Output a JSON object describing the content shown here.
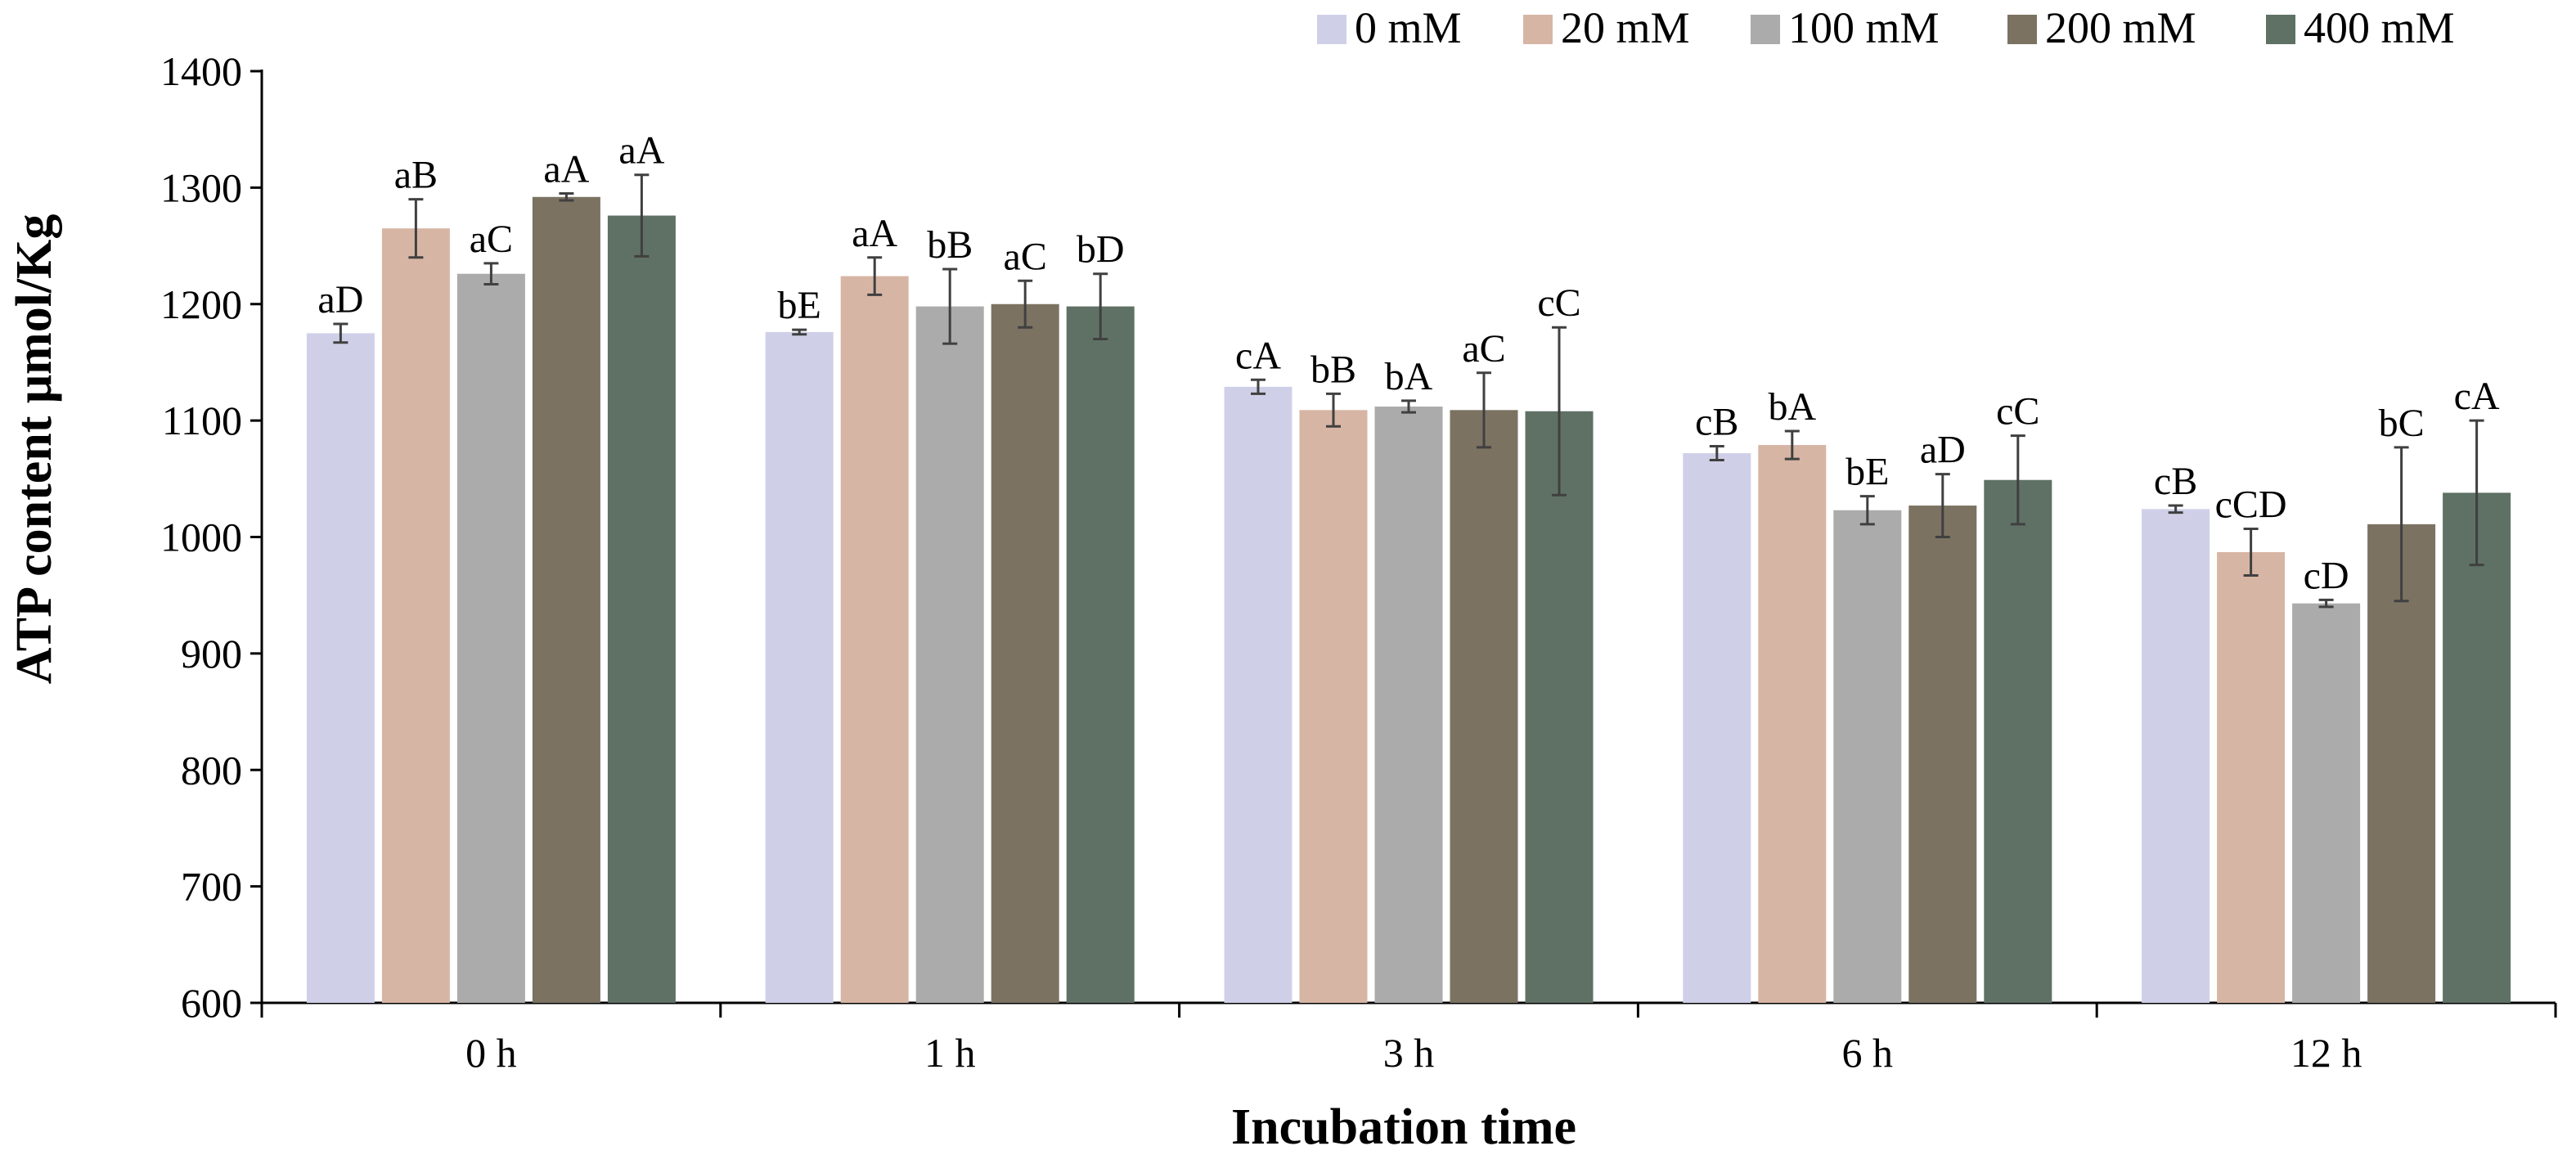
{
  "chart_data": {
    "type": "bar",
    "title": "",
    "xlabel": "Incubation time",
    "ylabel": "ATP content μmol/Kg",
    "ylim": [
      600,
      1400
    ],
    "yticks": [
      600,
      700,
      800,
      900,
      1000,
      1100,
      1200,
      1300,
      1400
    ],
    "grid": false,
    "legend_position": "top-right",
    "categories": [
      "0 h",
      "1 h",
      "3 h",
      "6 h",
      "12 h"
    ],
    "series": [
      {
        "name": "0 mM",
        "color": "#cfd0e8",
        "values": [
          1175,
          1176,
          1129,
          1072,
          1024
        ],
        "errors": [
          8,
          2,
          6,
          6,
          3
        ],
        "labels": [
          "aD",
          "bE",
          "cA",
          "cB",
          "cB"
        ]
      },
      {
        "name": "20 mM",
        "color": "#d7b5a4",
        "values": [
          1265,
          1224,
          1109,
          1079,
          987
        ],
        "errors": [
          25,
          16,
          14,
          12,
          20
        ],
        "labels": [
          "aB",
          "aA",
          "bB",
          "bA",
          "cCD"
        ]
      },
      {
        "name": "100 mM",
        "color": "#ababab",
        "values": [
          1226,
          1198,
          1112,
          1023,
          943
        ],
        "errors": [
          9,
          32,
          5,
          12,
          3
        ],
        "labels": [
          "aC",
          "bB",
          "bA",
          "bE",
          "cD"
        ]
      },
      {
        "name": "200 mM",
        "color": "#7b7262",
        "values": [
          1292,
          1200,
          1109,
          1027,
          1011
        ],
        "errors": [
          3,
          20,
          32,
          27,
          66
        ],
        "labels": [
          "aA",
          "aC",
          "aC",
          "aD",
          "bC"
        ]
      },
      {
        "name": "400 mM",
        "color": "#5f7165",
        "values": [
          1276,
          1198,
          1108,
          1049,
          1038
        ],
        "errors": [
          35,
          28,
          72,
          38,
          62
        ],
        "labels": [
          "aA",
          "bD",
          "cC",
          "cC",
          "cA"
        ]
      }
    ]
  }
}
